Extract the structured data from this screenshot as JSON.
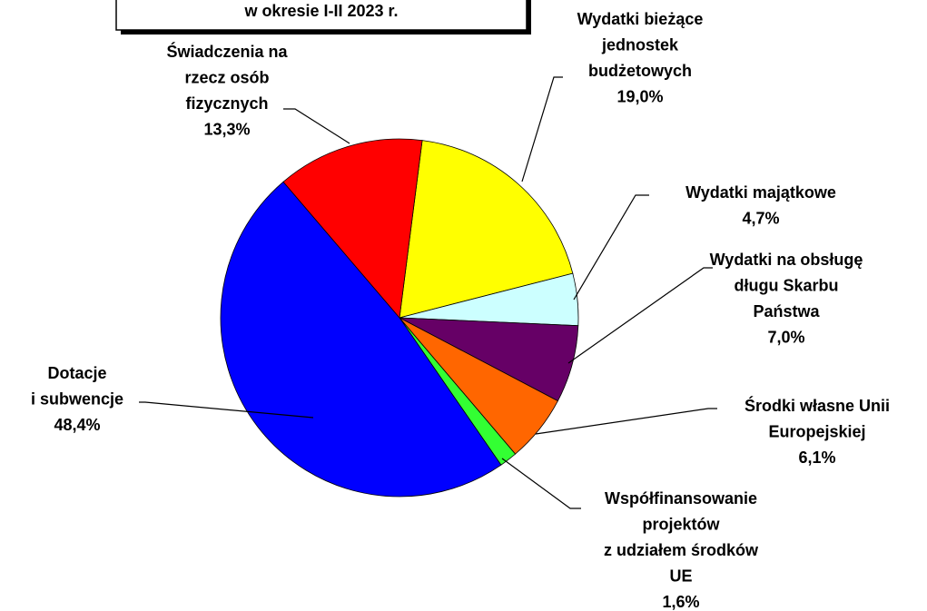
{
  "chart_data": {
    "type": "pie",
    "title": "w okresie I-II 2023 r.",
    "categories": [
      [
        "Wydatki bieżące",
        "jednostek",
        "budżetowych"
      ],
      [
        "Wydatki majątkowe"
      ],
      [
        "Wydatki na obsługę",
        "długu Skarbu",
        "Państwa"
      ],
      [
        "Środki własne Unii",
        "Europejskiej"
      ],
      [
        "Współfinansowanie",
        "projektów",
        "z udziałem środków",
        "UE"
      ],
      [
        "Dotacje",
        "i subwencje"
      ],
      [
        "Świadczenia na",
        "rzecz osób",
        "fizycznych"
      ]
    ],
    "values": [
      19.0,
      4.7,
      7.0,
      6.1,
      1.6,
      48.4,
      13.3
    ],
    "value_labels": [
      "19,0%",
      "4,7%",
      "7,0%",
      "6,1%",
      "1,6%",
      "48,4%",
      "13,3%"
    ],
    "colors": [
      "#ffff00",
      "#ccffff",
      "#660066",
      "#ff6600",
      "#33ff33",
      "#0000ff",
      "#ff0000"
    ]
  }
}
